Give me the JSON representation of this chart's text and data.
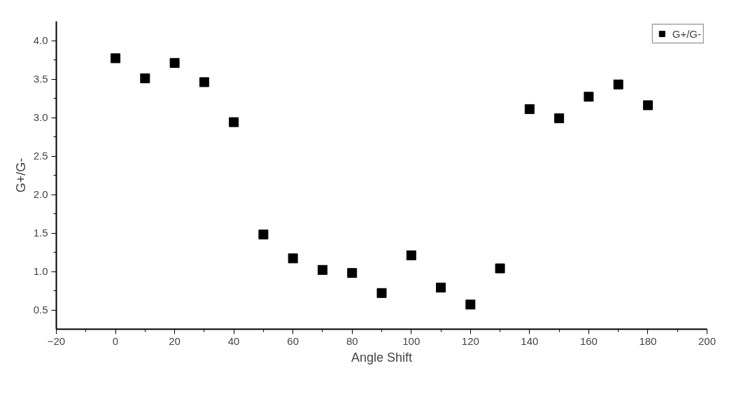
{
  "chart_data": {
    "type": "scatter",
    "xlabel": "Angle Shift",
    "ylabel": "G+/G-",
    "x": [
      0,
      10,
      20,
      30,
      40,
      50,
      60,
      70,
      80,
      90,
      100,
      110,
      120,
      130,
      140,
      150,
      160,
      170,
      180
    ],
    "series": [
      {
        "name": "G+/G-",
        "color": "#000000",
        "values": [
          3.77,
          3.51,
          3.71,
          3.46,
          2.94,
          1.48,
          1.17,
          1.02,
          0.98,
          0.72,
          1.21,
          0.79,
          0.57,
          1.04,
          3.11,
          2.99,
          3.27,
          3.43,
          3.16
        ]
      }
    ],
    "xlim": [
      -20,
      200
    ],
    "xticks": [
      -20,
      0,
      20,
      40,
      60,
      80,
      100,
      120,
      140,
      160,
      180,
      200
    ],
    "ylim": [
      0.25,
      4.25
    ],
    "yticks": [
      {
        "value": 0.5,
        "label": "0.5"
      },
      {
        "value": 1.0,
        "label": "1.0"
      },
      {
        "value": 1.5,
        "label": "1.5"
      },
      {
        "value": 2.0,
        "label": "2.0"
      },
      {
        "value": 2.5,
        "label": "2.5"
      },
      {
        "value": 3.0,
        "label": "3.0"
      },
      {
        "value": 3.5,
        "label": "3.5"
      },
      {
        "value": 4.0,
        "label": "4.0"
      }
    ],
    "marker": "square",
    "grid": false,
    "legend": "top right"
  }
}
